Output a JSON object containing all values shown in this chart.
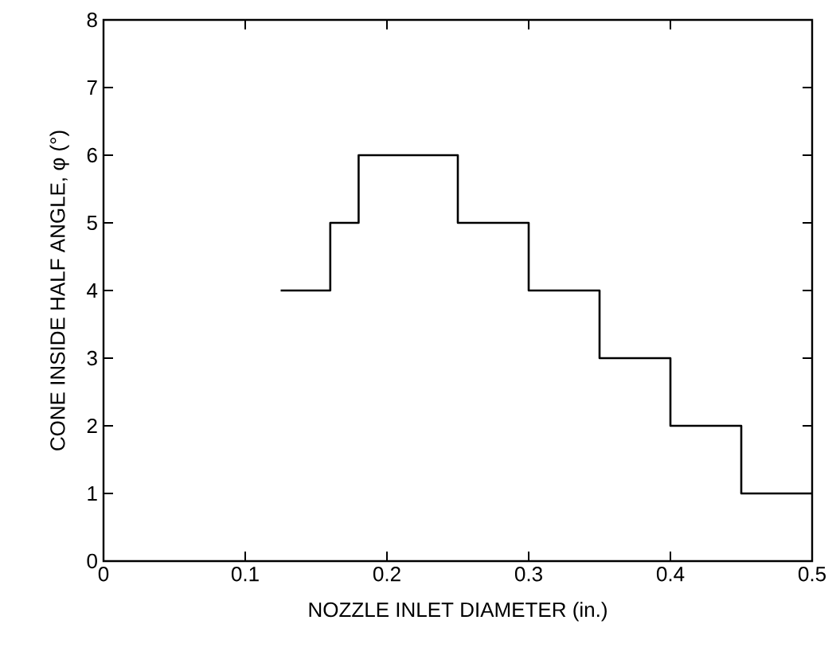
{
  "chart_data": {
    "type": "step",
    "xlabel": "NOZZLE INLET DIAMETER (in.)",
    "ylabel": "CONE INSIDE HALF ANGLE, φ (°)",
    "x": [
      0.125,
      0.16,
      0.18,
      0.25,
      0.3,
      0.35,
      0.4,
      0.45,
      0.5
    ],
    "values": [
      4,
      5,
      6,
      5,
      4,
      3,
      2,
      1,
      1
    ],
    "color": "#000000",
    "xlim": [
      0,
      0.5
    ],
    "ylim": [
      0,
      8
    ],
    "xticks": [
      0,
      0.1,
      0.2,
      0.3,
      0.4,
      0.5
    ],
    "yticks": [
      0,
      1,
      2,
      3,
      4,
      5,
      6,
      7,
      8
    ],
    "grid": false
  }
}
